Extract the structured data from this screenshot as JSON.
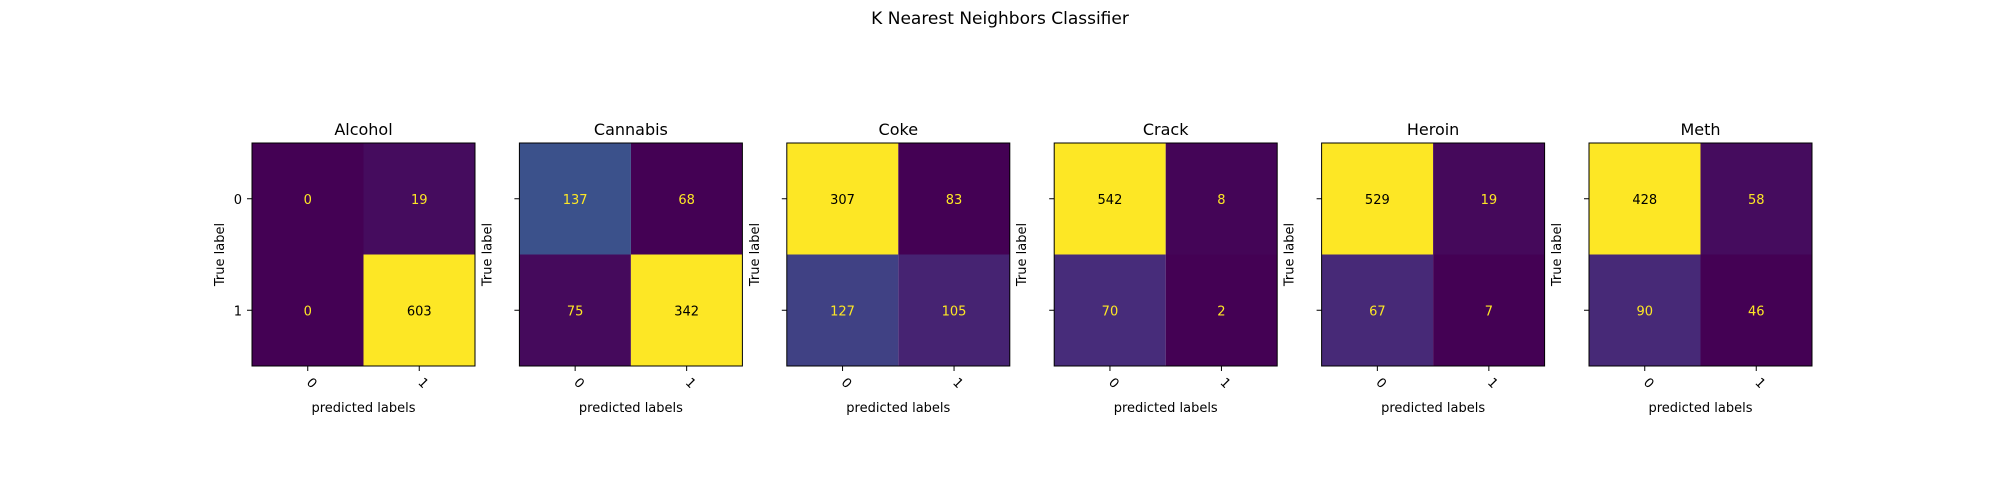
{
  "figure_title": "K Nearest Neighbors Classifier",
  "chart_data": [
    {
      "type": "heatmap",
      "title": "Alcohol",
      "xlabel": "predicted labels",
      "ylabel": "True label",
      "x_ticks": [
        "0",
        "1"
      ],
      "y_ticks": [
        "0",
        "1"
      ],
      "matrix": [
        [
          0,
          19
        ],
        [
          0,
          603
        ]
      ],
      "colormap": "viridis",
      "grid": false
    },
    {
      "type": "heatmap",
      "title": "Cannabis",
      "xlabel": "predicted labels",
      "ylabel": "True label",
      "x_ticks": [
        "0",
        "1"
      ],
      "y_ticks": [
        "0",
        "1"
      ],
      "matrix": [
        [
          137,
          68
        ],
        [
          75,
          342
        ]
      ],
      "colormap": "viridis",
      "grid": false
    },
    {
      "type": "heatmap",
      "title": "Coke",
      "xlabel": "predicted labels",
      "ylabel": "True label",
      "x_ticks": [
        "0",
        "1"
      ],
      "y_ticks": [
        "0",
        "1"
      ],
      "matrix": [
        [
          307,
          83
        ],
        [
          127,
          105
        ]
      ],
      "colormap": "viridis",
      "grid": false
    },
    {
      "type": "heatmap",
      "title": "Crack",
      "xlabel": "predicted labels",
      "ylabel": "True label",
      "x_ticks": [
        "0",
        "1"
      ],
      "y_ticks": [
        "0",
        "1"
      ],
      "matrix": [
        [
          542,
          8
        ],
        [
          70,
          2
        ]
      ],
      "colormap": "viridis",
      "grid": false
    },
    {
      "type": "heatmap",
      "title": "Heroin",
      "xlabel": "predicted labels",
      "ylabel": "True label",
      "x_ticks": [
        "0",
        "1"
      ],
      "y_ticks": [
        "0",
        "1"
      ],
      "matrix": [
        [
          529,
          19
        ],
        [
          67,
          7
        ]
      ],
      "colormap": "viridis",
      "grid": false
    },
    {
      "type": "heatmap",
      "title": "Meth",
      "xlabel": "predicted labels",
      "ylabel": "True label",
      "x_ticks": [
        "0",
        "1"
      ],
      "y_ticks": [
        "0",
        "1"
      ],
      "matrix": [
        [
          428,
          58
        ],
        [
          90,
          46
        ]
      ],
      "colormap": "viridis",
      "grid": false
    }
  ]
}
